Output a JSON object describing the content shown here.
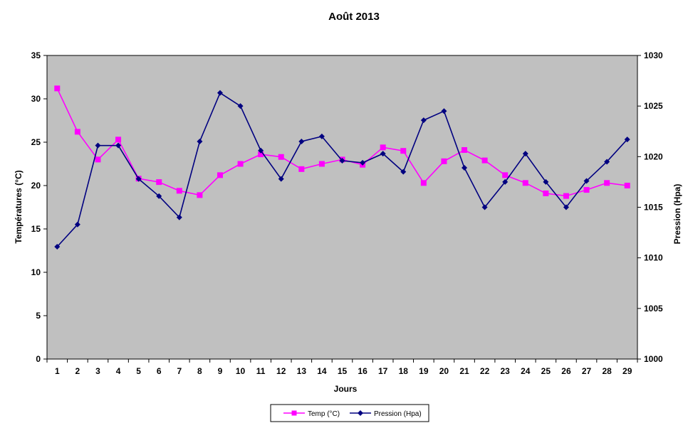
{
  "chart_data": {
    "type": "line",
    "title": "Août 2013",
    "xlabel": "Jours",
    "ylabel_left": "Températures (°C)",
    "ylabel_right": "Pression (Hpa)",
    "x": [
      1,
      2,
      3,
      4,
      5,
      6,
      7,
      8,
      9,
      10,
      11,
      12,
      13,
      14,
      15,
      16,
      17,
      18,
      19,
      20,
      21,
      22,
      23,
      24,
      25,
      26,
      27,
      28,
      29
    ],
    "ylim_left": [
      0,
      35
    ],
    "yticks_left": [
      0,
      5,
      10,
      15,
      20,
      25,
      30,
      35
    ],
    "ylim_right": [
      1000,
      1030
    ],
    "yticks_right": [
      1000,
      1005,
      1010,
      1015,
      1020,
      1025,
      1030
    ],
    "grid": false,
    "legend_position": "bottom",
    "plot_background": "#c0c0c0",
    "series": [
      {
        "name": "Temp (°C)",
        "axis": "left",
        "color": "#ff00ff",
        "marker": "square",
        "values": [
          31.2,
          26.2,
          23.0,
          25.3,
          20.8,
          20.4,
          19.4,
          18.9,
          21.2,
          22.5,
          23.6,
          23.3,
          21.9,
          22.5,
          23.0,
          22.4,
          24.4,
          24.0,
          20.3,
          22.8,
          24.1,
          22.9,
          21.2,
          20.3,
          19.1,
          18.8,
          19.5,
          20.3,
          20.0
        ]
      },
      {
        "name": "Pression (Hpa)",
        "axis": "right",
        "color": "#000080",
        "marker": "diamond",
        "values": [
          1011.1,
          1013.3,
          1021.1,
          1021.1,
          1017.8,
          1016.1,
          1014.0,
          1021.5,
          1026.3,
          1025.0,
          1020.6,
          1017.8,
          1021.5,
          1022.0,
          1019.6,
          1019.4,
          1020.3,
          1018.5,
          1023.6,
          1024.5,
          1018.9,
          1015.0,
          1017.5,
          1020.3,
          1017.5,
          1015.0,
          1017.6,
          1019.5,
          1021.7
        ]
      }
    ]
  }
}
